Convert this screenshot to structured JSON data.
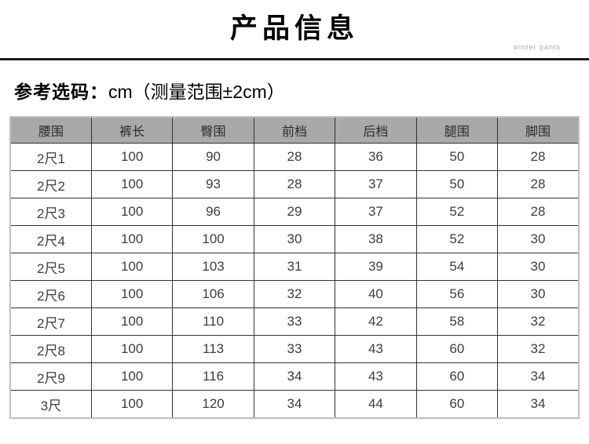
{
  "header": {
    "title": "产品信息",
    "watermark": "winter pants"
  },
  "subtitle": {
    "label_bold": "参考选码：",
    "label_rest": "cm（测量范围±2cm）"
  },
  "table": {
    "columns": [
      "腰围",
      "裤长",
      "臀围",
      "前档",
      "后档",
      "腿围",
      "脚围"
    ],
    "rows": [
      [
        "2尺1",
        "100",
        "90",
        "28",
        "36",
        "50",
        "28"
      ],
      [
        "2尺2",
        "100",
        "93",
        "28",
        "37",
        "50",
        "28"
      ],
      [
        "2尺3",
        "100",
        "96",
        "29",
        "37",
        "52",
        "28"
      ],
      [
        "2尺4",
        "100",
        "100",
        "30",
        "38",
        "52",
        "30"
      ],
      [
        "2尺5",
        "100",
        "103",
        "31",
        "39",
        "54",
        "30"
      ],
      [
        "2尺6",
        "100",
        "106",
        "32",
        "40",
        "56",
        "30"
      ],
      [
        "2尺7",
        "100",
        "110",
        "33",
        "42",
        "58",
        "32"
      ],
      [
        "2尺8",
        "100",
        "113",
        "33",
        "43",
        "60",
        "32"
      ],
      [
        "2尺9",
        "100",
        "116",
        "34",
        "43",
        "60",
        "34"
      ],
      [
        "3尺",
        "100",
        "120",
        "34",
        "44",
        "60",
        "34"
      ]
    ]
  },
  "colors": {
    "header_bg": "#a9a9a9",
    "cell_border": "#333333",
    "outer_border": "#bfbfbf",
    "divider": "#1d1d1d",
    "data_text": "#3d3d3d",
    "watermark_text": "#a8a8a8"
  }
}
